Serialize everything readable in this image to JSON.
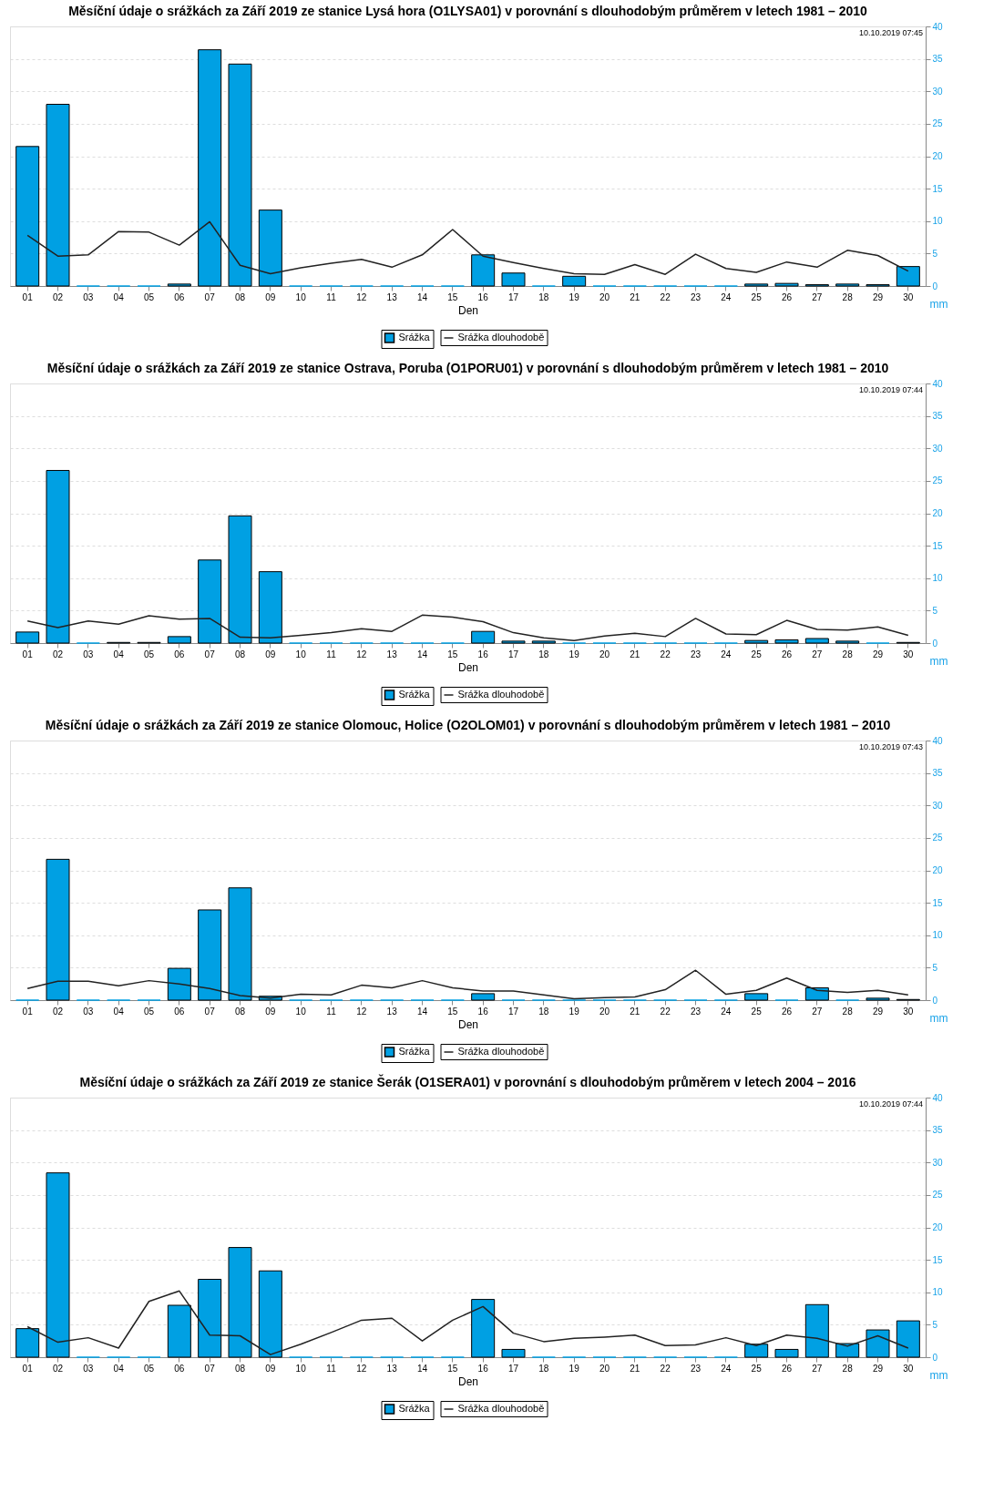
{
  "chart_data": [
    {
      "type": "bar",
      "title": "Měsíční údaje o srážkách za Září 2019 ze stanice Lysá hora (O1LYSA01) v porovnání s dlouhodobým průměrem v letech 1981 – 2010",
      "xlabel": "Den",
      "ylabel": "mm",
      "annotations": [
        "10.10.2019 07:45"
      ],
      "ylim": [
        0,
        40
      ],
      "yticks": [
        0,
        5,
        10,
        15,
        20,
        25,
        30,
        35,
        40
      ],
      "grid": "y",
      "legend": "bottom",
      "categories": [
        "01",
        "02",
        "03",
        "04",
        "05",
        "06",
        "07",
        "08",
        "09",
        "10",
        "11",
        "12",
        "13",
        "14",
        "15",
        "16",
        "17",
        "18",
        "19",
        "20",
        "21",
        "22",
        "23",
        "24",
        "25",
        "26",
        "27",
        "28",
        "29",
        "30"
      ],
      "series": [
        {
          "name": "Srážka",
          "type": "bar",
          "color": "#00a0e3",
          "values": [
            21.5,
            28.0,
            0,
            0,
            0,
            0.3,
            36.4,
            34.2,
            11.7,
            0,
            0,
            0,
            0,
            0,
            0,
            4.8,
            2.0,
            0,
            1.5,
            0,
            0,
            0,
            0,
            0,
            0.3,
            0.4,
            0.2,
            0.3,
            0.2,
            3.0
          ]
        },
        {
          "name": "Srážka dlouhodobě",
          "type": "line",
          "color": "#222222",
          "values": [
            7.8,
            4.6,
            4.8,
            8.4,
            8.3,
            6.3,
            9.9,
            3.2,
            1.9,
            2.8,
            3.5,
            4.1,
            2.9,
            4.8,
            8.7,
            4.6,
            3.6,
            2.7,
            1.9,
            1.8,
            3.3,
            1.8,
            4.9,
            2.7,
            2.1,
            3.7,
            2.9,
            5.5,
            4.7,
            2.3
          ]
        }
      ]
    },
    {
      "type": "bar",
      "title": "Měsíční údaje o srážkách za Září 2019 ze stanice Ostrava, Poruba (O1PORU01) v porovnání s dlouhodobým průměrem v letech 1981 – 2010",
      "xlabel": "Den",
      "ylabel": "mm",
      "annotations": [
        "10.10.2019 07:44"
      ],
      "ylim": [
        0,
        40
      ],
      "yticks": [
        0,
        5,
        10,
        15,
        20,
        25,
        30,
        35,
        40
      ],
      "grid": "y",
      "legend": "bottom",
      "categories": [
        "01",
        "02",
        "03",
        "04",
        "05",
        "06",
        "07",
        "08",
        "09",
        "10",
        "11",
        "12",
        "13",
        "14",
        "15",
        "16",
        "17",
        "18",
        "19",
        "20",
        "21",
        "22",
        "23",
        "24",
        "25",
        "26",
        "27",
        "28",
        "29",
        "30"
      ],
      "series": [
        {
          "name": "Srážka",
          "type": "bar",
          "color": "#00a0e3",
          "values": [
            1.7,
            26.6,
            0,
            0.1,
            0.1,
            1.0,
            12.8,
            19.6,
            11.0,
            0,
            0,
            0,
            0,
            0,
            0,
            1.8,
            0.3,
            0.3,
            0,
            0,
            0,
            0,
            0,
            0,
            0.4,
            0.5,
            0.7,
            0.3,
            0,
            0.1
          ]
        },
        {
          "name": "Srážka dlouhodobě",
          "type": "line",
          "color": "#222222",
          "values": [
            3.4,
            2.4,
            3.4,
            2.9,
            4.2,
            3.7,
            3.8,
            0.9,
            0.8,
            1.2,
            1.6,
            2.2,
            1.8,
            4.3,
            4.0,
            3.3,
            1.6,
            0.8,
            0.4,
            1.1,
            1.5,
            1.0,
            3.8,
            1.4,
            1.3,
            3.5,
            2.1,
            2.0,
            2.5,
            1.2
          ]
        }
      ]
    },
    {
      "type": "bar",
      "title": "Měsíční údaje o srážkách za Září 2019 ze stanice Olomouc, Holice (O2OLOM01) v porovnání s dlouhodobým průměrem v letech 1981 – 2010",
      "xlabel": "Den",
      "ylabel": "mm",
      "annotations": [
        "10.10.2019 07:43"
      ],
      "ylim": [
        0,
        40
      ],
      "yticks": [
        0,
        5,
        10,
        15,
        20,
        25,
        30,
        35,
        40
      ],
      "grid": "y",
      "legend": "bottom",
      "categories": [
        "01",
        "02",
        "03",
        "04",
        "05",
        "06",
        "07",
        "08",
        "09",
        "10",
        "11",
        "12",
        "13",
        "14",
        "15",
        "16",
        "17",
        "18",
        "19",
        "20",
        "21",
        "22",
        "23",
        "24",
        "25",
        "26",
        "27",
        "28",
        "29",
        "30"
      ],
      "series": [
        {
          "name": "Srážka",
          "type": "bar",
          "color": "#00a0e3",
          "values": [
            0,
            21.7,
            0,
            0,
            0,
            4.9,
            13.9,
            17.3,
            0.6,
            0,
            0,
            0,
            0,
            0,
            0,
            1.0,
            0,
            0,
            0,
            0,
            0,
            0,
            0,
            0,
            1.0,
            0,
            1.9,
            0,
            0.3,
            0.1
          ]
        },
        {
          "name": "Srážka dlouhodobě",
          "type": "line",
          "color": "#222222",
          "values": [
            1.8,
            2.9,
            2.9,
            2.2,
            3.0,
            2.5,
            1.8,
            0.7,
            0.3,
            0.9,
            0.8,
            2.3,
            1.9,
            3.0,
            1.9,
            1.4,
            1.4,
            0.8,
            0.2,
            0.4,
            0.5,
            1.6,
            4.6,
            0.9,
            1.5,
            3.4,
            1.5,
            1.2,
            1.5,
            0.8
          ]
        }
      ]
    },
    {
      "type": "bar",
      "title": "Měsíční údaje o srážkách za Září 2019 ze stanice Šerák (O1SERA01) v porovnání s dlouhodobým průměrem v letech 2004 – 2016",
      "xlabel": "Den",
      "ylabel": "mm",
      "annotations": [
        "10.10.2019 07:44"
      ],
      "ylim": [
        0,
        40
      ],
      "yticks": [
        0,
        5,
        10,
        15,
        20,
        25,
        30,
        35,
        40
      ],
      "grid": "y",
      "legend": "bottom",
      "categories": [
        "01",
        "02",
        "03",
        "04",
        "05",
        "06",
        "07",
        "08",
        "09",
        "10",
        "11",
        "12",
        "13",
        "14",
        "15",
        "16",
        "17",
        "18",
        "19",
        "20",
        "21",
        "22",
        "23",
        "24",
        "25",
        "26",
        "27",
        "28",
        "29",
        "30"
      ],
      "series": [
        {
          "name": "Srážka",
          "type": "bar",
          "color": "#00a0e3",
          "values": [
            4.4,
            28.4,
            0,
            0,
            0,
            8.0,
            12.0,
            16.9,
            13.3,
            0,
            0,
            0,
            0,
            0,
            0,
            8.9,
            1.2,
            0,
            0,
            0,
            0,
            0,
            0,
            0,
            2.0,
            1.2,
            8.1,
            2.1,
            4.2,
            5.6
          ]
        },
        {
          "name": "Srážka dlouhodobě",
          "type": "line",
          "color": "#222222",
          "values": [
            4.7,
            2.3,
            3.0,
            1.4,
            8.6,
            10.2,
            3.4,
            3.3,
            0.4,
            2.0,
            3.8,
            5.7,
            6.0,
            2.5,
            5.7,
            7.8,
            3.7,
            2.4,
            2.9,
            3.1,
            3.4,
            1.8,
            1.9,
            3.0,
            1.8,
            3.4,
            2.9,
            1.7,
            3.3,
            1.4
          ]
        }
      ]
    }
  ]
}
